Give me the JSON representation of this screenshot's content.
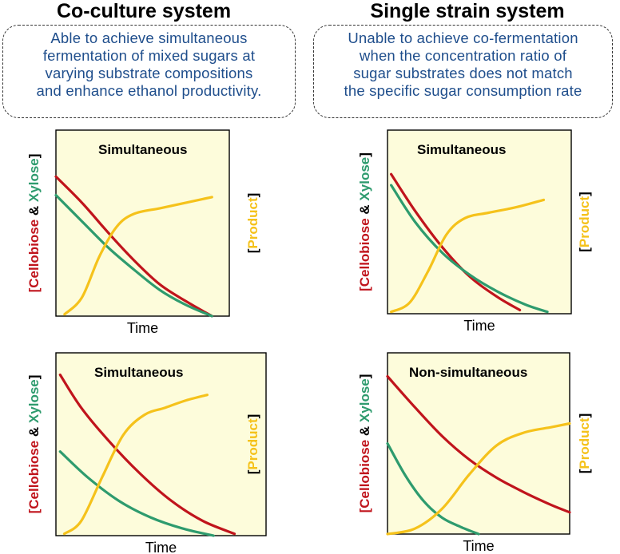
{
  "columns": [
    {
      "title": "Co-culture system",
      "note": [
        "Able to achieve simultaneous",
        "fermentation of mixed sugars at",
        "varying substrate compositions",
        "and enhance ethanol productivity."
      ]
    },
    {
      "title": "Single strain system",
      "note": [
        "Unable to achieve co-fermentation",
        "when the concentration ratio of",
        "sugar substrates does not match",
        "the specific sugar consumption rate"
      ]
    }
  ],
  "legend": {
    "bracket_open": "[",
    "bracket_close": "]",
    "cellobiose": "Cellobiose",
    "amp": "&",
    "xylose": "Xylose",
    "product": "Product"
  },
  "colors": {
    "cellobiose": "#c0141c",
    "xylose": "#2e9b6e",
    "product": "#f5c21b",
    "panel_bg": "#fdfcdb",
    "note_text": "#1f4e8c"
  },
  "chart_data": [
    {
      "type": "line",
      "panel": "co-culture-top",
      "label": "Simultaneous",
      "xlabel": "Time",
      "ylabel": "[Cellobiose & Xylose]",
      "y2label": "[Product]",
      "xlim": [
        0,
        1
      ],
      "ylim": [
        0,
        1
      ],
      "series": [
        {
          "name": "Cellobiose",
          "color": "#c0141c",
          "x": [
            0,
            0.15,
            0.3,
            0.45,
            0.6,
            0.75,
            0.9
          ],
          "y": [
            0.75,
            0.61,
            0.45,
            0.3,
            0.17,
            0.08,
            0
          ]
        },
        {
          "name": "Xylose",
          "color": "#2e9b6e",
          "x": [
            0,
            0.15,
            0.3,
            0.45,
            0.6,
            0.75,
            0.9
          ],
          "y": [
            0.65,
            0.51,
            0.37,
            0.25,
            0.14,
            0.06,
            0
          ]
        },
        {
          "name": "Product",
          "color": "#f5c21b",
          "x": [
            0.05,
            0.15,
            0.25,
            0.35,
            0.45,
            0.6,
            0.75,
            0.9
          ],
          "y": [
            0.01,
            0.1,
            0.32,
            0.48,
            0.55,
            0.58,
            0.61,
            0.64
          ]
        }
      ]
    },
    {
      "type": "line",
      "panel": "single-strain-top",
      "label": "Simultaneous",
      "xlabel": "Time",
      "ylabel": "[Cellobiose & Xylose]",
      "y2label": "[Product]",
      "xlim": [
        0,
        1
      ],
      "ylim": [
        0,
        1
      ],
      "series": [
        {
          "name": "Cellobiose",
          "color": "#c0141c",
          "x": [
            0.02,
            0.15,
            0.3,
            0.45,
            0.6,
            0.72
          ],
          "y": [
            0.76,
            0.56,
            0.36,
            0.2,
            0.09,
            0.02
          ]
        },
        {
          "name": "Xylose",
          "color": "#2e9b6e",
          "x": [
            0.02,
            0.15,
            0.3,
            0.45,
            0.6,
            0.75,
            0.87
          ],
          "y": [
            0.7,
            0.5,
            0.33,
            0.21,
            0.12,
            0.05,
            0.01
          ]
        },
        {
          "name": "Product",
          "color": "#f5c21b",
          "x": [
            0.02,
            0.12,
            0.22,
            0.32,
            0.42,
            0.55,
            0.7,
            0.85
          ],
          "y": [
            0.01,
            0.06,
            0.23,
            0.43,
            0.52,
            0.55,
            0.58,
            0.62
          ]
        }
      ]
    },
    {
      "type": "line",
      "panel": "co-culture-bottom",
      "label": "Simultaneous",
      "xlabel": "Time",
      "ylabel": "[Cellobiose & Xylose]",
      "y2label": "[Product]",
      "xlim": [
        0,
        1
      ],
      "ylim": [
        0,
        1
      ],
      "series": [
        {
          "name": "Cellobiose",
          "color": "#c0141c",
          "x": [
            0.02,
            0.12,
            0.25,
            0.4,
            0.55,
            0.7,
            0.85
          ],
          "y": [
            0.88,
            0.7,
            0.52,
            0.34,
            0.19,
            0.08,
            0.01
          ]
        },
        {
          "name": "Xylose",
          "color": "#2e9b6e",
          "x": [
            0.02,
            0.15,
            0.3,
            0.45,
            0.6,
            0.75
          ],
          "y": [
            0.46,
            0.32,
            0.19,
            0.1,
            0.04,
            0
          ]
        },
        {
          "name": "Product",
          "color": "#f5c21b",
          "x": [
            0.04,
            0.12,
            0.22,
            0.32,
            0.42,
            0.52,
            0.62,
            0.72
          ],
          "y": [
            0.01,
            0.08,
            0.32,
            0.55,
            0.66,
            0.7,
            0.74,
            0.77
          ]
        }
      ]
    },
    {
      "type": "line",
      "panel": "single-strain-bottom",
      "label": "Non-simultaneous",
      "xlabel": "Time",
      "ylabel": "[Cellobiose & Xylose]",
      "y2label": "[Product]",
      "xlim": [
        0,
        1
      ],
      "ylim": [
        0,
        1
      ],
      "series": [
        {
          "name": "Cellobiose",
          "color": "#c0141c",
          "x": [
            0,
            0.15,
            0.3,
            0.45,
            0.6,
            0.75,
            0.9,
            1
          ],
          "y": [
            0.87,
            0.7,
            0.54,
            0.41,
            0.31,
            0.23,
            0.16,
            0.12
          ]
        },
        {
          "name": "Xylose",
          "color": "#2e9b6e",
          "x": [
            0,
            0.1,
            0.2,
            0.3,
            0.4,
            0.5
          ],
          "y": [
            0.5,
            0.32,
            0.18,
            0.09,
            0.04,
            0
          ]
        },
        {
          "name": "Product",
          "color": "#f5c21b",
          "x": [
            0,
            0.15,
            0.3,
            0.45,
            0.6,
            0.75,
            0.9,
            1
          ],
          "y": [
            0,
            0.03,
            0.14,
            0.33,
            0.49,
            0.56,
            0.59,
            0.61
          ]
        }
      ]
    }
  ]
}
